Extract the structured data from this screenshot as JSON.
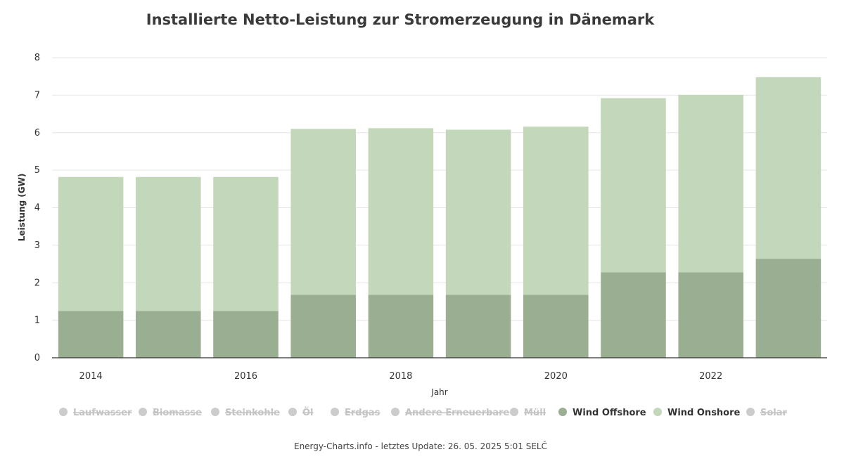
{
  "chart_data": {
    "type": "bar",
    "stacked": true,
    "title": "Installierte Netto-Leistung zur Stromerzeugung in Dänemark",
    "xlabel": "Jahr",
    "ylabel": "Leistung (GW)",
    "ylim": [
      0,
      8
    ],
    "yticks": [
      0,
      1,
      2,
      3,
      4,
      5,
      6,
      7,
      8
    ],
    "grid": true,
    "categories": [
      "2014",
      "2015",
      "2016",
      "2017",
      "2018",
      "2019",
      "2020",
      "2021",
      "2022",
      "2023"
    ],
    "xtick_labels": [
      "2014",
      "",
      "2016",
      "",
      "2018",
      "",
      "2020",
      "",
      "2022",
      ""
    ],
    "series": [
      {
        "name": "Wind Offshore",
        "color": "#9aae91",
        "values": [
          1.25,
          1.25,
          1.25,
          1.68,
          1.68,
          1.68,
          1.68,
          2.28,
          2.28,
          2.64
        ]
      },
      {
        "name": "Wind Onshore",
        "color": "#c3d8ba",
        "values": [
          3.57,
          3.57,
          3.57,
          4.42,
          4.44,
          4.4,
          4.48,
          4.64,
          4.73,
          4.84
        ]
      }
    ],
    "legend_position": "bottom",
    "legend": [
      {
        "name": "Laufwasser",
        "active": false
      },
      {
        "name": "Biomasse",
        "active": false
      },
      {
        "name": "Steinkohle",
        "active": false
      },
      {
        "name": "Öl",
        "active": false
      },
      {
        "name": "Erdgas",
        "active": false
      },
      {
        "name": "Andere Erneuerbare",
        "active": false
      },
      {
        "name": "Müll",
        "active": false
      },
      {
        "name": "Wind Offshore",
        "active": true,
        "color": "#9aae91"
      },
      {
        "name": "Wind Onshore",
        "active": true,
        "color": "#c3d8ba"
      },
      {
        "name": "Solar",
        "active": false
      }
    ],
    "credit": "Energy-Charts.info - letztes Update: 26. 05. 2025 5:01 SELČ"
  }
}
